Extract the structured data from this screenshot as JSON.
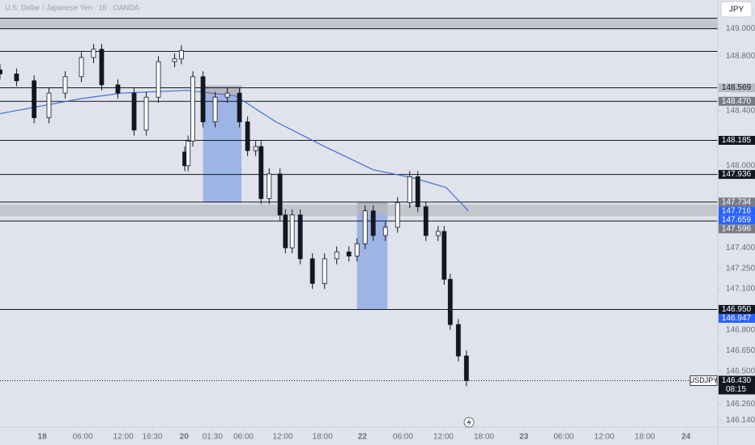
{
  "header": {
    "symbol_title": "U.S. Dollar / Japanese Yen · 15 · OANDA",
    "currency": "JPY"
  },
  "chart_data": {
    "type": "candlestick",
    "x": [
      -6.25,
      -3.8,
      -1.2,
      1,
      3.4,
      5.8,
      7.6,
      8.8,
      11.2,
      13.6,
      15.4,
      17.2,
      19.6,
      20.6,
      21.1,
      21.6,
      22.3,
      23.8,
      25.6,
      27.4,
      29.2,
      30.4,
      31.6,
      32.4,
      33.6,
      35.2,
      36,
      37,
      38.2,
      40,
      41.8,
      43.6,
      45.4,
      46.6,
      47.8,
      49,
      50.8,
      52.6,
      54.4,
      55.6,
      56.8,
      58.6,
      59.5,
      60.4,
      61.6,
      62.8
    ],
    "open": [
      148.7,
      148.67,
      148.62,
      148.35,
      148.53,
      148.65,
      148.79,
      148.85,
      148.59,
      148.53,
      148.26,
      148.5,
      148.76,
      148.78,
      148.1,
      148.0,
      148.18,
      148.65,
      148.32,
      148.5,
      148.53,
      148.32,
      148.11,
      148.14,
      147.76,
      147.94,
      147.64,
      147.4,
      147.64,
      147.32,
      147.14,
      147.32,
      147.37,
      147.34,
      147.43,
      147.67,
      147.49,
      147.55,
      147.73,
      147.92,
      147.7,
      147.49,
      147.52,
      147.17,
      146.84,
      146.61
    ],
    "high": [
      148.74,
      148.71,
      148.66,
      148.57,
      148.69,
      148.83,
      148.89,
      148.89,
      148.63,
      148.57,
      148.54,
      148.8,
      148.82,
      148.88,
      148.14,
      148.22,
      148.69,
      148.69,
      148.54,
      148.57,
      148.57,
      148.36,
      148.18,
      148.18,
      147.98,
      147.98,
      147.68,
      147.68,
      147.68,
      147.36,
      147.36,
      147.41,
      147.41,
      147.47,
      147.71,
      147.71,
      147.59,
      147.77,
      147.96,
      147.96,
      147.74,
      147.56,
      147.56,
      147.21,
      146.88,
      146.65
    ],
    "low": [
      148.63,
      148.58,
      148.31,
      148.31,
      148.49,
      148.61,
      148.75,
      148.55,
      148.49,
      148.22,
      148.22,
      148.46,
      148.72,
      148.74,
      147.96,
      147.96,
      148.14,
      148.28,
      148.28,
      148.46,
      148.28,
      148.07,
      148.07,
      147.72,
      147.72,
      147.6,
      147.36,
      147.36,
      147.28,
      147.1,
      147.1,
      147.28,
      147.3,
      147.3,
      147.39,
      147.45,
      147.45,
      147.51,
      147.69,
      147.66,
      147.45,
      147.45,
      147.13,
      146.8,
      146.57,
      146.39
    ],
    "close": [
      148.67,
      148.62,
      148.35,
      148.53,
      148.65,
      148.79,
      148.85,
      148.59,
      148.53,
      148.26,
      148.5,
      148.76,
      148.78,
      148.84,
      148.0,
      148.18,
      148.65,
      148.32,
      148.5,
      148.53,
      148.32,
      148.11,
      148.14,
      147.76,
      147.94,
      147.64,
      147.4,
      147.64,
      147.32,
      147.14,
      147.32,
      147.37,
      147.34,
      147.43,
      147.67,
      147.49,
      147.55,
      147.73,
      147.92,
      147.7,
      147.49,
      147.52,
      147.17,
      146.84,
      146.61,
      146.43
    ],
    "up_color": "#ffffff",
    "down_color": "#131722",
    "ma": {
      "color": "#3d6fd8",
      "x": [
        -6.25,
        5.8,
        11.8,
        21.4,
        28.6,
        34.6,
        41.8,
        49,
        55,
        59.8,
        63.1
      ],
      "values": [
        148.38,
        148.49,
        148.53,
        148.55,
        148.51,
        148.32,
        148.14,
        147.97,
        147.91,
        147.84,
        147.67
      ]
    },
    "levels": [
      149.077,
      149.0,
      148.835,
      148.569,
      148.47,
      148.185,
      147.936,
      147.734,
      147.596,
      146.95
    ],
    "bands": [
      {
        "y": [
          149.0,
          149.077
        ],
        "color": "#c4c6cd"
      },
      {
        "y": [
          147.63,
          147.716
        ],
        "color": "#c4c6cd"
      }
    ],
    "boxes": [
      {
        "x": [
          23.8,
          29.5
        ],
        "y": [
          147.73,
          148.51
        ],
        "color": "#9db4e6"
      },
      {
        "x": [
          23.8,
          29.5
        ],
        "y": [
          148.51,
          148.586
        ],
        "color": "#b4b7c0"
      },
      {
        "x": [
          46.6,
          51.1
        ],
        "y": [
          146.947,
          147.65
        ],
        "color": "#9db4e6"
      },
      {
        "x": [
          46.6,
          51.1
        ],
        "y": [
          147.65,
          147.734
        ],
        "color": "#b4b7c0"
      }
    ],
    "xlim": [
      -6.25,
      100
    ],
    "ylim": [
      146.09,
      149.21
    ],
    "xticks": [
      {
        "value": 0,
        "label": "18"
      },
      {
        "value": 6,
        "label": "06:00"
      },
      {
        "value": 12,
        "label": "12:00"
      },
      {
        "value": 16.3,
        "label": "16:30"
      },
      {
        "value": 21,
        "label": "20"
      },
      {
        "value": 25.2,
        "label": "01:30"
      },
      {
        "value": 29.8,
        "label": "06:00"
      },
      {
        "value": 35.6,
        "label": "12:00"
      },
      {
        "value": 41.5,
        "label": "18:00"
      },
      {
        "value": 47.4,
        "label": "22"
      },
      {
        "value": 53.4,
        "label": "06:00"
      },
      {
        "value": 59.4,
        "label": "12:00"
      },
      {
        "value": 65.4,
        "label": "18:00"
      },
      {
        "value": 71.3,
        "label": "23"
      },
      {
        "value": 77.2,
        "label": "06:00"
      },
      {
        "value": 83.2,
        "label": "12:00"
      },
      {
        "value": 89.2,
        "label": "18:00"
      },
      {
        "value": 95.3,
        "label": "24"
      }
    ],
    "yticks": [
      {
        "value": 149.0,
        "label": "149.000"
      },
      {
        "value": 148.8,
        "label": "148.800"
      },
      {
        "value": 148.4,
        "label": "148.400"
      },
      {
        "value": 148.0,
        "label": "148.000"
      },
      {
        "value": 147.4,
        "label": "147.400"
      },
      {
        "value": 147.25,
        "label": "147.250"
      },
      {
        "value": 147.1,
        "label": "147.100"
      },
      {
        "value": 146.8,
        "label": "146.800"
      },
      {
        "value": 146.65,
        "label": "146.650"
      },
      {
        "value": 146.5,
        "label": "146.500"
      },
      {
        "value": 146.26,
        "label": "146.260"
      },
      {
        "value": 146.14,
        "label": "146.140"
      }
    ],
    "price_tags": [
      {
        "value": 148.569,
        "label": "148.569",
        "color": "#b8bbc4"
      },
      {
        "value": 148.47,
        "label": "148.470",
        "color": "#787b86"
      },
      {
        "value": 148.185,
        "label": "148.185",
        "color": "#131722"
      },
      {
        "value": 147.936,
        "label": "147.936",
        "color": "#131722"
      },
      {
        "value": 147.734,
        "label": "147.734",
        "color": "#787b86"
      },
      {
        "value": 147.716,
        "label": "147.716",
        "color": "#2962ff"
      },
      {
        "value": 147.659,
        "label": "147.659",
        "color": "#2962ff"
      },
      {
        "value": 147.596,
        "label": "147.596",
        "color": "#787b86"
      },
      {
        "value": 146.95,
        "label": "146.950",
        "color": "#131722"
      },
      {
        "value": 146.947,
        "label": "146.947",
        "color": "#2962ff"
      }
    ],
    "last": {
      "name": "USDJPY",
      "value": 146.43,
      "label": "146.430",
      "countdown": "08:15"
    }
  }
}
